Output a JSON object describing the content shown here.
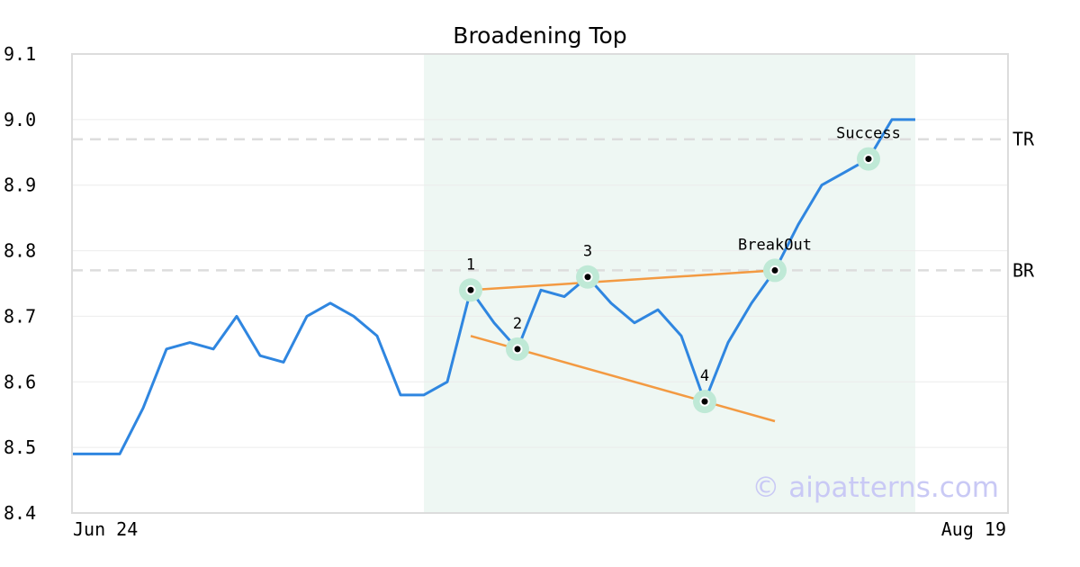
{
  "chart_data": {
    "type": "line",
    "title": "Broadening Top",
    "xlabel": "",
    "ylabel": "",
    "ylim": [
      8.4,
      9.1
    ],
    "yticks": [
      "8.4",
      "8.5",
      "8.6",
      "8.7",
      "8.8",
      "8.9",
      "9.0",
      "9.1"
    ],
    "xtick_labels": [
      "Jun 24",
      "Aug 19"
    ],
    "grid": true,
    "highlight_range": [
      15,
      36
    ],
    "series": [
      {
        "values": [
          8.49,
          8.49,
          8.49,
          8.56,
          8.65,
          8.66,
          8.65,
          8.7,
          8.64,
          8.63,
          8.7,
          8.72,
          8.7,
          8.67,
          8.58,
          8.58,
          8.6,
          8.74,
          8.69,
          8.65,
          8.74,
          8.73,
          8.76,
          8.72,
          8.69,
          8.71,
          8.67,
          8.57,
          8.66,
          8.72,
          8.77,
          8.84,
          8.9,
          8.92,
          8.94,
          9.0,
          9.0
        ],
        "color": "#2f86e0"
      }
    ],
    "trendlines": [
      {
        "from": [
          17,
          8.74
        ],
        "to": [
          30,
          8.77
        ],
        "color": "#f39a42"
      },
      {
        "from": [
          17,
          8.67
        ],
        "to": [
          30,
          8.54
        ],
        "color": "#f39a42"
      }
    ],
    "levels": [
      {
        "label": "TR",
        "y": 8.97
      },
      {
        "label": "BR",
        "y": 8.77
      }
    ],
    "annotations": [
      {
        "label": "1",
        "x": 17,
        "y": 8.74
      },
      {
        "label": "2",
        "x": 19,
        "y": 8.65
      },
      {
        "label": "3",
        "x": 22,
        "y": 8.76
      },
      {
        "label": "4",
        "x": 27,
        "y": 8.57
      },
      {
        "label": "BreakOut",
        "x": 30,
        "y": 8.77
      },
      {
        "label": "Success",
        "x": 34,
        "y": 8.94
      }
    ]
  },
  "watermark": "© aipatterns.com",
  "colors": {
    "line": "#2f86e0",
    "trend": "#f39a42",
    "highlight": "#eef7f3",
    "marker_halo": "#bfe9d6",
    "level": "#dddddd",
    "grid": "#ebebeb",
    "frame": "#dcdcdc"
  }
}
